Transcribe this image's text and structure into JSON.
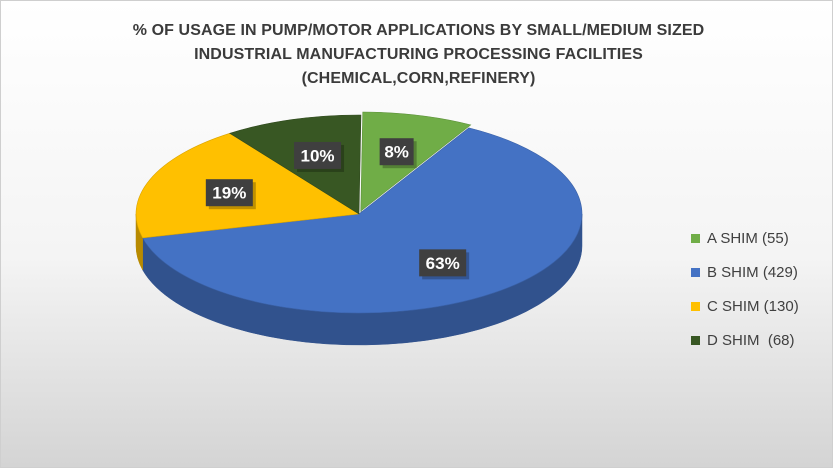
{
  "chart_data": {
    "type": "pie",
    "title_lines": [
      "% OF USAGE IN PUMP/MOTOR  APPLICATIONS BY SMALL/MEDIUM SIZED",
      "INDUSTRIAL MANUFACTURING PROCESSING FACILITIES",
      "(CHEMICAL,CORN,REFINERY)"
    ],
    "slices": [
      {
        "label": "A SHIM (55)",
        "value": 55,
        "percent_label": "8%",
        "color": "#70ad47"
      },
      {
        "label": "B SHIM (429)",
        "value": 429,
        "percent_label": "63%",
        "color": "#4472c4"
      },
      {
        "label": "C SHIM (130)",
        "value": 130,
        "percent_label": "19%",
        "color": "#ffc000"
      },
      {
        "label": "D SHIM  (68)",
        "value": 68,
        "percent_label": "10%",
        "color": "#385723"
      }
    ],
    "legend_position": "right",
    "three_d": true
  }
}
